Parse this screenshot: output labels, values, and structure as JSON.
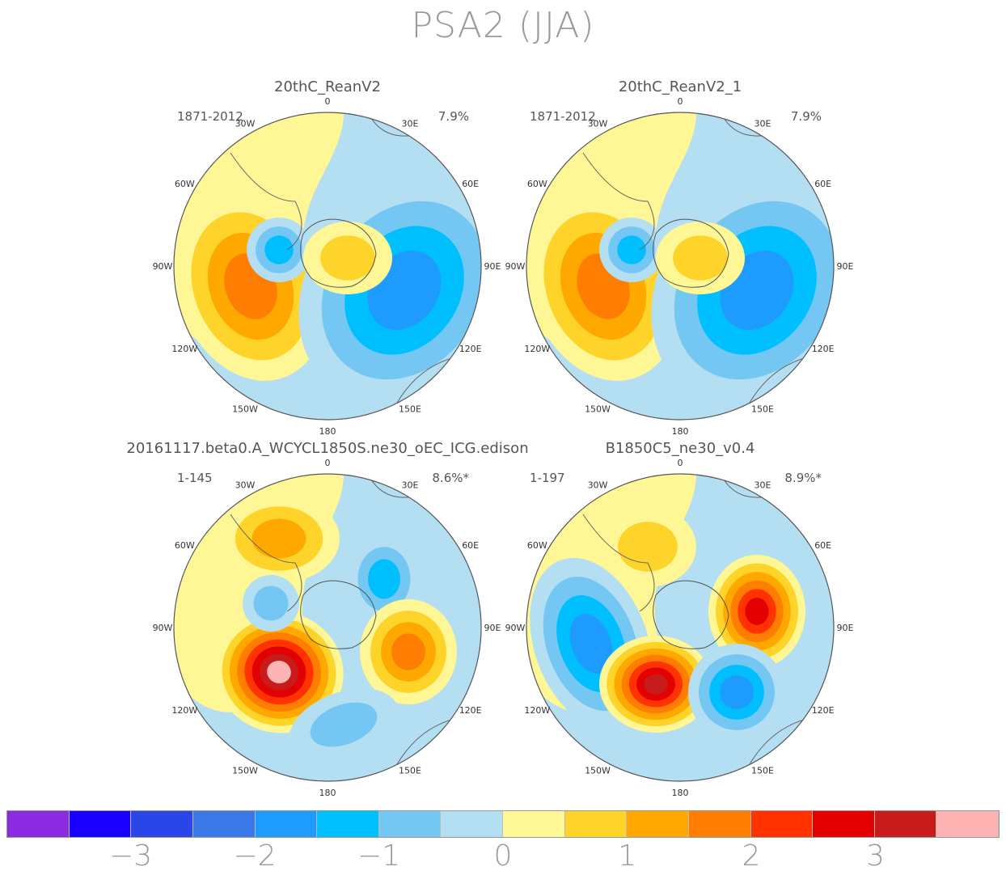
{
  "title": "PSA2 (JJA)",
  "panels": [
    {
      "name": "20thC_ReanV2",
      "period": "1871-2012",
      "variance": "7.9%"
    },
    {
      "name": "20thC_ReanV2_1",
      "period": "1871-2012",
      "variance": "7.9%"
    },
    {
      "name": "20161117.beta0.A_WCYCL1850S.ne30_oEC_ICG.edison",
      "period": "1-145",
      "variance": "8.6%*"
    },
    {
      "name": "B1850C5_ne30_v0.4",
      "period": "1-197",
      "variance": "8.9%*"
    }
  ],
  "longitude_labels": {
    "top": "0",
    "e30": "30E",
    "e60": "60E",
    "e90": "90E",
    "e120": "120E",
    "e150": "150E",
    "bottom": "180",
    "w150": "150W",
    "w120": "120W",
    "w90": "90W",
    "w60": "60W",
    "w30": "30W"
  },
  "colorbar": {
    "colors": [
      "#8a2be2",
      "#1a00ff",
      "#2a45e8",
      "#3a78e8",
      "#1e9bff",
      "#00bfff",
      "#74c7f2",
      "#b4def2",
      "#fff796",
      "#ffd42a",
      "#ffa800",
      "#ff7d00",
      "#ff3200",
      "#e30000",
      "#c81b1b",
      "#ffb4b4"
    ],
    "tick_labels": [
      "−3",
      "−2",
      "−1",
      "0",
      "1",
      "2",
      "3"
    ]
  }
}
